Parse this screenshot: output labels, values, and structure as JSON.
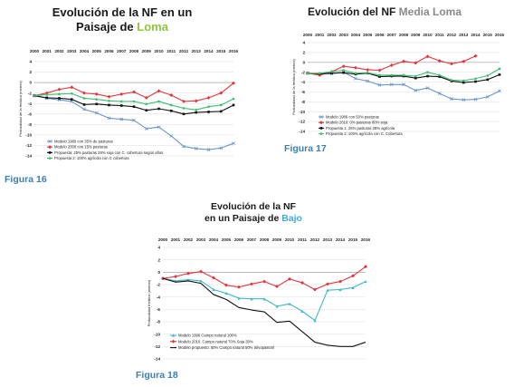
{
  "chart_data": [
    {
      "type": "line",
      "title_main": "Evolución de la NF en un",
      "title_line2": "Paisaje de",
      "title_accent": "Loma",
      "accent_color": "#8dc63f",
      "figure_label": "Figura 16",
      "ylabel": "Profundidad de la freática (metros)",
      "x": [
        2000,
        2001,
        2002,
        2003,
        2004,
        2005,
        2006,
        2007,
        2008,
        2009,
        2010,
        2011,
        2012,
        2013,
        2014,
        2015,
        2016
      ],
      "ylim": [
        -14,
        4
      ],
      "yticks": [
        4,
        2,
        0,
        -2,
        -4,
        -6,
        -8,
        -10,
        -12,
        -14
      ],
      "grid": "horizontal",
      "series": [
        {
          "name": "Modelo 1980 con 35% de pasturas",
          "color": "#6b96c8",
          "marker": "x",
          "values": [
            -2.5,
            -3.0,
            -3.3,
            -3.6,
            -5.1,
            -5.8,
            -6.8,
            -7.0,
            -7.2,
            -8.8,
            -8.5,
            -10.2,
            -12.2,
            -12.6,
            -12.8,
            -12.5,
            -11.6
          ]
        },
        {
          "name": "Modelo 2000 con 15% pasturas",
          "color": "#e5353c",
          "marker": "diamond",
          "values": [
            -2.5,
            -2.0,
            -1.3,
            -0.9,
            -2.0,
            -2.2,
            -2.7,
            -2.2,
            -1.8,
            -2.9,
            -1.6,
            -2.4,
            -3.6,
            -3.5,
            -2.9,
            -2.0,
            -0.1
          ]
        },
        {
          "name": "Propuesta: 25% pasturas 28% soja con C. cobertura según años",
          "color": "#111111",
          "marker": "square",
          "values": [
            -2.5,
            -2.9,
            -3.0,
            -3.2,
            -4.2,
            -4.1,
            -4.3,
            -4.4,
            -4.6,
            -5.3,
            -5.0,
            -5.4,
            -6.0,
            -5.7,
            -5.6,
            -5.5,
            -4.3
          ]
        },
        {
          "name": "Propuesta 2: 100% agrícola con C cobertura",
          "color": "#3fbf6f",
          "marker": "circle",
          "values": [
            -2.5,
            -2.3,
            -2.2,
            -2.1,
            -3.0,
            -3.2,
            -3.5,
            -3.6,
            -3.6,
            -4.1,
            -3.6,
            -4.3,
            -4.9,
            -5.2,
            -4.6,
            -4.3,
            -3.1
          ]
        }
      ]
    },
    {
      "type": "line",
      "title_main": "Evolución del NF",
      "title_line2": "",
      "title_accent": "Media Loma",
      "accent_color": "#8a8a8a",
      "figure_label": "Figura 17",
      "ylabel": "Profundidad de la freática (metros)",
      "x": [
        2000,
        2001,
        2002,
        2003,
        2004,
        2005,
        2006,
        2007,
        2008,
        2009,
        2010,
        2011,
        2012,
        2013,
        2014,
        2015,
        2016
      ],
      "ylim": [
        -14,
        4
      ],
      "yticks": [
        4,
        2,
        0,
        -2,
        -4,
        -6,
        -8,
        -10,
        -12,
        -14
      ],
      "grid": "horizontal",
      "series": [
        {
          "name": "Modelo 1986 con 50% pasturas",
          "color": "#6b96c8",
          "marker": "x",
          "values": [
            -2.2,
            -2.4,
            -2.3,
            -2.0,
            -3.3,
            -3.8,
            -4.6,
            -4.5,
            -4.5,
            -5.7,
            -5.2,
            -6.3,
            -7.4,
            -7.6,
            -7.5,
            -7.0,
            -5.8
          ]
        },
        {
          "name": "Modelo 2010: 0% pasturas 80% soja",
          "color": "#e5353c",
          "marker": "diamond",
          "values": [
            -2.2,
            -2.6,
            -1.9,
            -0.8,
            -1.1,
            -1.5,
            -1.6,
            -0.6,
            0.2,
            -0.1,
            1.2,
            0.3,
            -0.3,
            0.2,
            1.3,
            null,
            null
          ]
        },
        {
          "name": "Propuesta 1: 25% pasturas 28% agrícola",
          "color": "#111111",
          "marker": "square",
          "values": [
            -2.2,
            -2.3,
            -2.2,
            -2.1,
            -2.4,
            -2.2,
            -2.9,
            -2.8,
            -2.8,
            -3.2,
            -2.8,
            -2.9,
            -3.8,
            -4.1,
            -3.9,
            -3.5,
            -2.5
          ]
        },
        {
          "name": "Propuesta 2: 100% agrícola con C. Cobertura",
          "color": "#3fbf6f",
          "marker": "circle",
          "values": [
            -2.2,
            -2.2,
            -1.9,
            -1.6,
            -2.2,
            -2.1,
            -2.6,
            -2.6,
            -2.6,
            -2.8,
            -2.0,
            -2.6,
            -3.6,
            -3.7,
            -3.3,
            -2.7,
            -1.3
          ]
        }
      ]
    },
    {
      "type": "line",
      "title_main": "Evolución de la NF",
      "title_line2": "en un Paisaje de",
      "title_accent": "Bajo",
      "accent_color": "#3fa9e0",
      "figure_label": "Figura 18",
      "ylabel": "Profundidad freática (metros)",
      "x": [
        2000,
        2001,
        2002,
        2003,
        2004,
        2005,
        2006,
        2007,
        2008,
        2009,
        2010,
        2011,
        2012,
        2013,
        2014,
        2015,
        2016
      ],
      "ylim": [
        -14,
        4
      ],
      "yticks": [
        4,
        2,
        0,
        -2,
        -4,
        -6,
        -8,
        -10,
        -12,
        -14
      ],
      "grid": "horizontal",
      "series": [
        {
          "name": "Modelo 1996 Campo natural 100%",
          "color": "#3fb8c8",
          "marker": "triangle",
          "values": [
            -1.0,
            -1.4,
            -1.2,
            -1.4,
            -2.8,
            -3.4,
            -4.2,
            -4.3,
            -4.3,
            -5.5,
            -5.1,
            -6.3,
            -7.8,
            -2.9,
            -2.8,
            -2.5,
            -1.5
          ]
        },
        {
          "name": "Modelo 2010. Campo natural 70% Soja 30%",
          "color": "#e5353c",
          "marker": "diamond",
          "values": [
            -1.0,
            -0.7,
            -0.2,
            0.1,
            -0.9,
            -2.1,
            -2.4,
            -1.9,
            -1.5,
            -2.3,
            -1.1,
            -1.7,
            -2.8,
            -1.9,
            -1.5,
            -0.6,
            0.9
          ]
        },
        {
          "name": "Modelo propuesto: 50% Campo natural 50% Silvopastoril",
          "color": "#111111",
          "marker": "none",
          "values": [
            -1.0,
            -1.6,
            -1.4,
            -1.8,
            -3.6,
            -4.4,
            -5.7,
            -6.1,
            -6.4,
            -8.1,
            -7.9,
            -9.6,
            -11.3,
            -11.8,
            -12.0,
            -12.0,
            -11.3
          ]
        }
      ]
    }
  ]
}
